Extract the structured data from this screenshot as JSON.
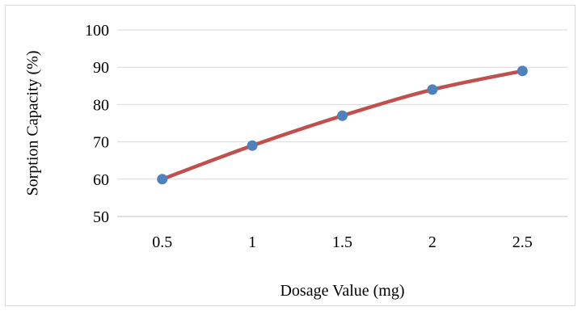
{
  "chart_data": {
    "type": "line",
    "title": "",
    "xlabel": "Dosage Value (mg)",
    "ylabel": "Sorption Capacity (%)",
    "categories": [
      "0.5",
      "1",
      "1.5",
      "2",
      "2.5"
    ],
    "series": [
      {
        "values": [
          60,
          69,
          77,
          84,
          89
        ]
      }
    ],
    "ylim": [
      50,
      100
    ],
    "yticks": [
      "50",
      "60",
      "70",
      "80",
      "90",
      "100"
    ],
    "grid": true,
    "legend": "none",
    "colors": {
      "line": "#C0504D",
      "marker": "#4F81BD",
      "grid": "#d9d9d9",
      "axis": "#bfbfbf"
    }
  }
}
